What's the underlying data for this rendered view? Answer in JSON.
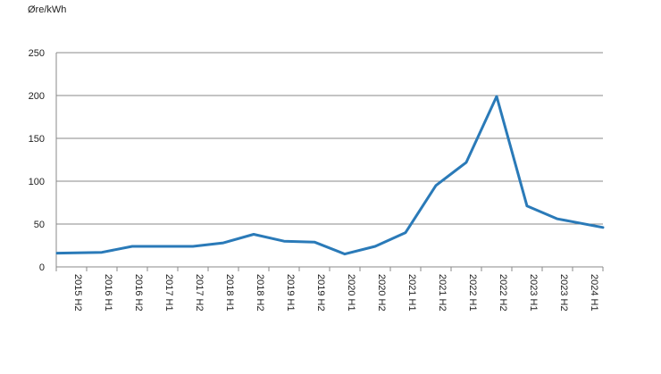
{
  "chart_data": {
    "type": "line",
    "ylabel": "Øre/kWh",
    "ylim": [
      0,
      250
    ],
    "yticks": [
      0,
      50,
      100,
      150,
      200,
      250
    ],
    "grid": true,
    "categories": [
      "2015 H2",
      "2016 H1",
      "2016 H2",
      "2017 H1",
      "2017 H2",
      "2018 H1",
      "2018 H2",
      "2019 H1",
      "2019 H2",
      "2020 H1",
      "2020 H2",
      "2021 H1",
      "2021 H2",
      "2022 H1",
      "2022 H2",
      "2023 H1",
      "2023 H2",
      "2024 H1"
    ],
    "series": [
      {
        "color": "#2a7ab8",
        "values": [
          16,
          17,
          24,
          24,
          24,
          28,
          38,
          30,
          29,
          15,
          24,
          40,
          95,
          122,
          199,
          71,
          56,
          46
        ]
      }
    ]
  }
}
